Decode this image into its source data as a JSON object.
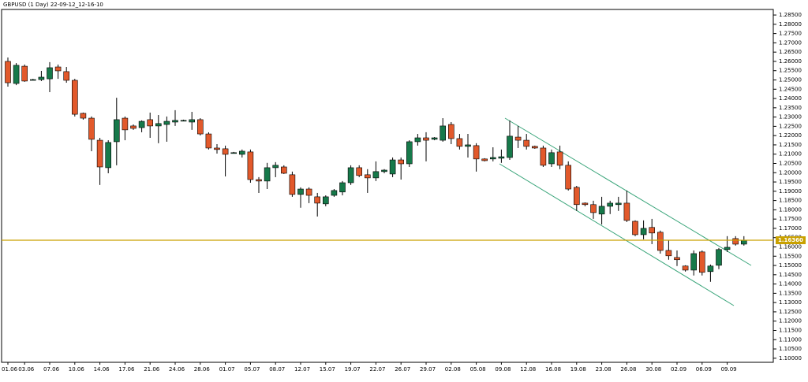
{
  "chart_data": {
    "type": "candlestick",
    "title": "GBPUSD (1 Day) 22-09-12_12-16-10",
    "categories": [
      "01.06",
      null,
      "03.06",
      null,
      null,
      "07.06",
      null,
      null,
      "10.06",
      null,
      null,
      "14.06",
      null,
      null,
      "17.06",
      null,
      null,
      "21.06",
      null,
      null,
      "24.06",
      null,
      null,
      "28.06",
      null,
      null,
      "01.07",
      null,
      null,
      "05.07",
      null,
      null,
      "08.07",
      null,
      null,
      "12.07",
      null,
      null,
      "15.07",
      null,
      null,
      "19.07",
      null,
      null,
      "22.07",
      null,
      null,
      "26.07",
      null,
      null,
      "29.07",
      null,
      null,
      "02.08",
      null,
      null,
      "05.08",
      null,
      null,
      "09.08",
      null,
      null,
      "12.08",
      null,
      null,
      "16.08",
      null,
      null,
      "19.08",
      null,
      null,
      "23.08",
      null,
      null,
      "26.08",
      null,
      null,
      "30.08",
      null,
      null,
      "02.09",
      null,
      null,
      "06.09",
      null,
      null,
      "09.09",
      null,
      null
    ],
    "open": [
      1.26,
      1.2481,
      1.2574,
      1.2502,
      1.2502,
      1.2506,
      1.257,
      1.2545,
      1.2498,
      1.232,
      1.2294,
      1.2175,
      1.2027,
      1.2167,
      1.2294,
      1.2252,
      1.2243,
      1.2286,
      1.2252,
      1.226,
      1.2273,
      1.2282,
      1.2273,
      1.2286,
      1.2209,
      1.2133,
      1.2129,
      1.2108,
      1.2099,
      1.2112,
      1.1963,
      1.1955,
      1.2027,
      1.2031,
      1.1989,
      1.1883,
      1.1912,
      1.187,
      1.1832,
      1.1878,
      1.1896,
      1.1946,
      1.2027,
      1.1989,
      1.1972,
      1.2006,
      1.1993,
      1.2069,
      1.2048,
      1.2167,
      1.2188,
      1.218,
      1.2175,
      1.226,
      1.2184,
      1.2142,
      1.2146,
      1.2074,
      1.2074,
      1.2078,
      1.2082,
      1.2192,
      1.2175,
      1.2142,
      1.2133,
      1.2048,
      1.2112,
      1.204,
      1.1921,
      1.1836,
      1.1828,
      1.1777,
      1.1819,
      1.1828,
      1.1836,
      1.1738,
      1.1666,
      1.1705,
      1.1679,
      1.1581,
      1.1543,
      1.1497,
      1.1475,
      1.1573,
      1.1467,
      1.1501,
      1.1586,
      1.1645,
      1.1615
    ],
    "high": [
      1.2621,
      1.2591,
      1.2583,
      1.2506,
      1.2549,
      1.2596,
      1.2583,
      1.257,
      1.2506,
      1.2324,
      1.2303,
      1.2188,
      1.2175,
      1.2404,
      1.2303,
      1.226,
      1.2282,
      1.2324,
      1.2311,
      1.2303,
      1.2337,
      1.2286,
      1.2328,
      1.2294,
      1.2218,
      1.2154,
      1.2146,
      1.2112,
      1.2125,
      1.2125,
      1.1976,
      1.2053,
      1.2057,
      1.204,
      1.2006,
      1.1921,
      1.1921,
      1.1891,
      1.1878,
      1.1912,
      1.1955,
      1.204,
      1.204,
      1.2019,
      1.2061,
      1.2019,
      1.2082,
      1.2082,
      1.2175,
      1.2209,
      1.2218,
      1.2192,
      1.2294,
      1.2273,
      1.2209,
      1.2209,
      1.2159,
      1.2078,
      1.2137,
      1.2125,
      1.2282,
      1.2252,
      1.2209,
      1.2146,
      1.2146,
      1.2125,
      1.2146,
      1.2061,
      1.1929,
      1.184,
      1.1849,
      1.187,
      1.1849,
      1.187,
      1.1904,
      1.1743,
      1.1743,
      1.1751,
      1.1688,
      1.1637,
      1.1581,
      1.1501,
      1.1581,
      1.1581,
      1.1505,
      1.1594,
      1.1658,
      1.1658,
      1.1658
    ],
    "low": [
      1.2464,
      1.2472,
      1.249,
      1.2498,
      1.2494,
      1.2434,
      1.2506,
      1.2485,
      1.2303,
      1.2286,
      1.2116,
      1.1934,
      1.1997,
      1.204,
      1.2175,
      1.2231,
      1.2218,
      1.2188,
      1.2159,
      1.2167,
      1.2252,
      1.2277,
      1.2231,
      1.2201,
      1.2125,
      1.2103,
      1.198,
      1.2103,
      1.2082,
      1.1946,
      1.1891,
      1.1912,
      1.1976,
      1.1993,
      1.187,
      1.1811,
      1.1836,
      1.1764,
      1.1819,
      1.187,
      1.1878,
      1.1934,
      1.1976,
      1.1891,
      1.1955,
      1.1997,
      1.1976,
      1.1963,
      1.2031,
      1.2146,
      1.2061,
      1.2175,
      1.2167,
      1.2154,
      1.2125,
      1.2082,
      1.2006,
      1.2061,
      1.2061,
      1.2053,
      1.2069,
      1.2133,
      1.2125,
      1.2129,
      1.2031,
      1.2031,
      1.2019,
      1.1904,
      1.1794,
      1.1819,
      1.1751,
      1.1721,
      1.1777,
      1.1794,
      1.1734,
      1.1658,
      1.1641,
      1.1615,
      1.1564,
      1.1531,
      1.1497,
      1.1467,
      1.1446,
      1.1446,
      1.1412,
      1.148,
      1.1573,
      1.1607,
      1.1607
    ],
    "close": [
      1.2485,
      1.2579,
      1.2494,
      1.2502,
      1.2515,
      1.2566,
      1.2549,
      1.2498,
      1.2315,
      1.2294,
      1.218,
      1.2031,
      1.2163,
      1.2286,
      1.2231,
      1.2239,
      1.2277,
      1.2252,
      1.2265,
      1.2277,
      1.2282,
      1.2282,
      1.2286,
      1.2209,
      1.2133,
      1.2125,
      1.2099,
      1.2108,
      1.2116,
      1.1963,
      1.1955,
      1.2027,
      1.204,
      1.1997,
      1.1883,
      1.1912,
      1.1878,
      1.1836,
      1.187,
      1.1904,
      1.1946,
      1.2027,
      1.1985,
      1.1972,
      1.2006,
      1.2014,
      1.2069,
      1.2048,
      1.2167,
      1.2188,
      1.2175,
      1.2188,
      1.2252,
      1.2184,
      1.2142,
      1.215,
      1.2074,
      1.2065,
      1.2082,
      1.2086,
      1.2197,
      1.2175,
      1.2142,
      1.2133,
      1.204,
      1.2108,
      1.204,
      1.1912,
      1.1828,
      1.1828,
      1.1785,
      1.1819,
      1.1836,
      1.1836,
      1.1743,
      1.1666,
      1.17,
      1.1675,
      1.1581,
      1.1552,
      1.1531,
      1.1475,
      1.1564,
      1.1463,
      1.1497,
      1.1586,
      1.1598,
      1.1615,
      1.1636
    ],
    "up_color": "#16794a",
    "down_color": "#e2592b",
    "current_price": {
      "value": 1.1636,
      "label": "1.16360"
    },
    "current_price_color": "#c9a100",
    "ylim": [
      1.0978,
      1.288
    ],
    "yticks": [
      {
        "value": 1.285,
        "label": "1.28500"
      },
      {
        "value": 1.28,
        "label": "1.28000"
      },
      {
        "value": 1.275,
        "label": "1.27500"
      },
      {
        "value": 1.27,
        "label": "1.27000"
      },
      {
        "value": 1.265,
        "label": "1.26500"
      },
      {
        "value": 1.26,
        "label": "1.26000"
      },
      {
        "value": 1.255,
        "label": "1.25500"
      },
      {
        "value": 1.25,
        "label": "1.25000"
      },
      {
        "value": 1.245,
        "label": "1.24500"
      },
      {
        "value": 1.24,
        "label": "1.24000"
      },
      {
        "value": 1.235,
        "label": "1.23500"
      },
      {
        "value": 1.23,
        "label": "1.23000"
      },
      {
        "value": 1.225,
        "label": "1.22500"
      },
      {
        "value": 1.22,
        "label": "1.22000"
      },
      {
        "value": 1.215,
        "label": "1.21500"
      },
      {
        "value": 1.21,
        "label": "1.21000"
      },
      {
        "value": 1.205,
        "label": "1.20500"
      },
      {
        "value": 1.2,
        "label": "1.20000"
      },
      {
        "value": 1.195,
        "label": "1.19500"
      },
      {
        "value": 1.19,
        "label": "1.19000"
      },
      {
        "value": 1.185,
        "label": "1.18500"
      },
      {
        "value": 1.18,
        "label": "1.18000"
      },
      {
        "value": 1.175,
        "label": "1.17500"
      },
      {
        "value": 1.17,
        "label": "1.17000"
      },
      {
        "value": 1.165,
        "label": "1.16500"
      },
      {
        "value": 1.16,
        "label": "1.16000"
      },
      {
        "value": 1.155,
        "label": "1.15500"
      },
      {
        "value": 1.15,
        "label": "1.15000"
      },
      {
        "value": 1.145,
        "label": "1.14500"
      },
      {
        "value": 1.14,
        "label": "1.14000"
      },
      {
        "value": 1.135,
        "label": "1.13500"
      },
      {
        "value": 1.13,
        "label": "1.13000"
      },
      {
        "value": 1.125,
        "label": "1.12500"
      },
      {
        "value": 1.12,
        "label": "1.12000"
      },
      {
        "value": 1.115,
        "label": "1.11500"
      },
      {
        "value": 1.11,
        "label": "1.11000"
      },
      {
        "value": 1.105,
        "label": "1.10500"
      },
      {
        "value": 1.1,
        "label": "1.10000"
      }
    ]
  }
}
